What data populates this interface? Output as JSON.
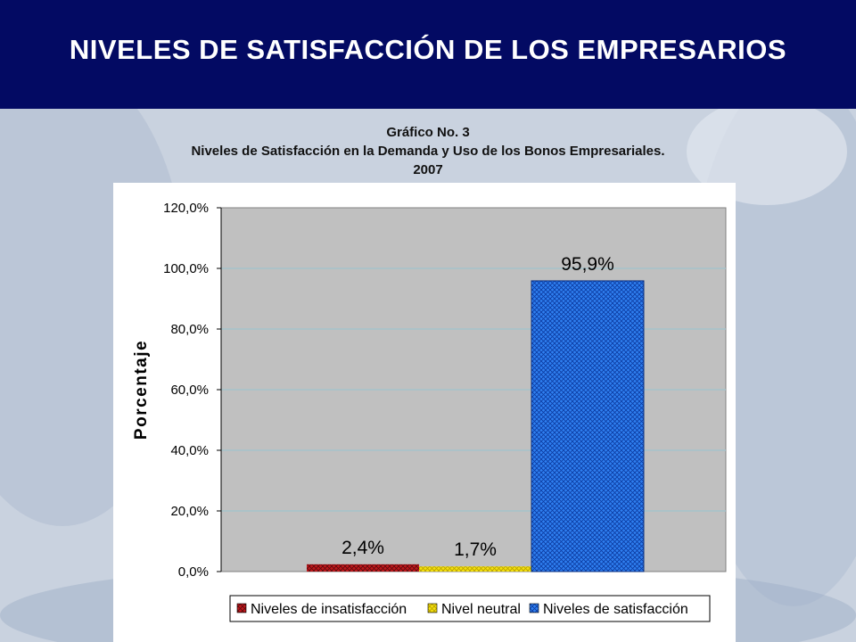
{
  "header": {
    "title": "NIVELES DE SATISFACCIÓN DE LOS EMPRESARIOS"
  },
  "caption": {
    "line1": "Gráfico No. 3",
    "line2": "Niveles de Satisfacción en la Demanda y Uso de los Bonos Empresariales.",
    "line3": "2007"
  },
  "chart_data": {
    "type": "bar",
    "ylabel": "Porcentaje",
    "ylim": [
      0,
      120
    ],
    "yticks": [
      0,
      20,
      40,
      60,
      80,
      100,
      120
    ],
    "ytick_labels": [
      "0,0%",
      "20,0%",
      "40,0%",
      "60,0%",
      "80,0%",
      "100,0%",
      "120,0%"
    ],
    "grid": true,
    "legend_position": "bottom",
    "categories": [
      "Niveles de insatisfacción",
      "Nivel neutral",
      "Niveles de satisfacción"
    ],
    "values": [
      2.4,
      1.7,
      95.9
    ],
    "value_labels": [
      "2,4%",
      "1,7%",
      "95,9%"
    ],
    "colors": [
      "#c0181d",
      "#f5e10e",
      "#1f6fe6"
    ],
    "plot_background": "#c0c0c0",
    "gridline_color": "#9fc3cc"
  }
}
